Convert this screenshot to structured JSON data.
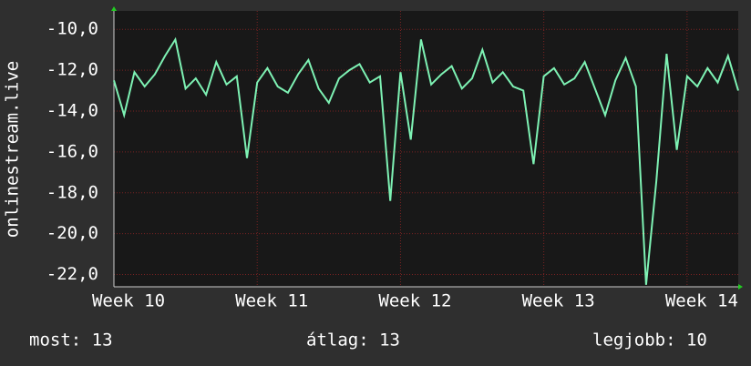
{
  "chart_data": {
    "type": "line",
    "y_label": "onlinestream.live",
    "x": [
      0,
      0.5,
      1,
      1.5,
      2,
      2.5,
      3,
      3.5,
      4,
      4.5,
      5,
      5.5,
      6,
      6.5,
      7,
      7.5,
      8,
      8.5,
      9,
      9.5,
      10,
      10.5,
      11,
      11.5,
      12,
      12.5,
      13,
      13.5,
      14,
      14.5,
      15,
      15.5,
      16,
      16.5,
      17,
      17.5,
      18,
      18.5,
      19,
      19.5,
      20,
      20.5,
      21,
      21.5,
      22,
      22.5,
      23,
      23.5,
      24,
      24.5,
      25,
      25.5,
      26,
      26.5,
      27,
      27.5,
      28,
      28.5,
      29,
      29.5,
      30,
      30.5
    ],
    "series": [
      {
        "color": "#7ef2b4",
        "values": [
          -12.5,
          -14.2,
          -12.1,
          -12.8,
          -12.2,
          -11.3,
          -10.5,
          -12.9,
          -12.4,
          -13.2,
          -11.6,
          -12.7,
          -12.3,
          -16.3,
          -12.6,
          -11.9,
          -12.8,
          -13.1,
          -12.2,
          -11.5,
          -12.9,
          -13.6,
          -12.4,
          -12.0,
          -11.7,
          -12.6,
          -12.3,
          -18.4,
          -12.1,
          -15.4,
          -10.5,
          -12.7,
          -12.2,
          -11.8,
          -12.9,
          -12.4,
          -11.0,
          -12.6,
          -12.1,
          -12.8,
          -13.0,
          -16.6,
          -12.3,
          -11.9,
          -12.7,
          -12.4,
          -11.6,
          -12.9,
          -14.2,
          -12.5,
          -11.4,
          -12.8,
          -22.5,
          -17.4,
          -11.2,
          -15.9,
          -12.3,
          -12.8,
          -11.9,
          -12.6,
          -11.3,
          -13.0
        ]
      }
    ],
    "xlim": [
      0,
      30.5
    ],
    "xticks": [
      {
        "value": 0,
        "label": "Week 10"
      },
      {
        "value": 7,
        "label": "Week 11"
      },
      {
        "value": 14,
        "label": "Week 12"
      },
      {
        "value": 21,
        "label": "Week 13"
      },
      {
        "value": 28,
        "label": "Week 14"
      }
    ],
    "ylim": [
      -22.6,
      -9.1
    ],
    "yticks": [
      {
        "value": -10,
        "label": "-10,0"
      },
      {
        "value": -12,
        "label": "-12,0"
      },
      {
        "value": -14,
        "label": "-14,0"
      },
      {
        "value": -16,
        "label": "-16,0"
      },
      {
        "value": -18,
        "label": "-18,0"
      },
      {
        "value": -20,
        "label": "-20,0"
      },
      {
        "value": -22,
        "label": "-22,0"
      }
    ],
    "grid": true
  },
  "footer": [
    "most: 13",
    "átlag: 13",
    "legjobb: 10"
  ]
}
